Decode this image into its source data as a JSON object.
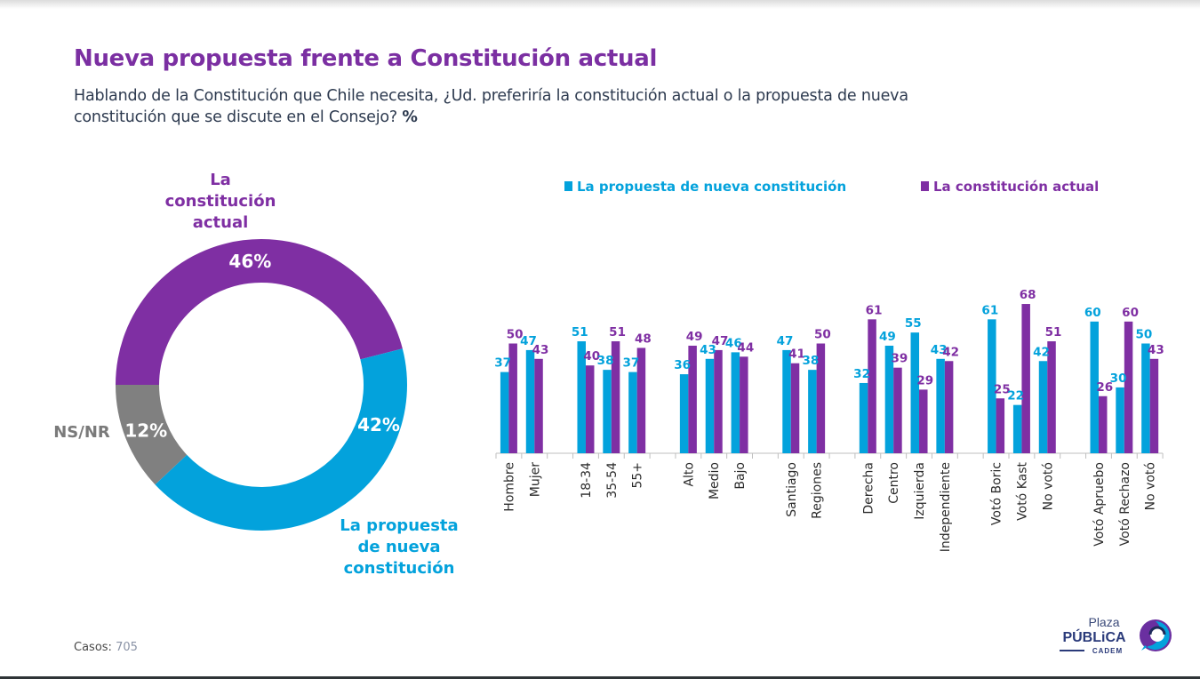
{
  "header": {
    "title": "Nueva propuesta frente a Constitución actual",
    "subtitle": "Hablando de la Constitución que Chile necesita, ¿Ud. preferiría la constitución actual o la propuesta de nueva constitución que se discute en el Consejo?",
    "subtitle_unit": "%"
  },
  "colors": {
    "purple": "#7f2fa3",
    "blue": "#03a2dc",
    "gray": "#808080",
    "title": "#7b2fa2"
  },
  "footer": {
    "cases_label": "Casos",
    "cases_value": "705"
  },
  "logo": {
    "line1": "Plaza",
    "line2": "PÚBLiCA",
    "line3": "CADEM"
  },
  "chart_data": [
    {
      "type": "pie",
      "donut": true,
      "title": "",
      "start": "left",
      "direction": "clockwise",
      "slices": [
        {
          "name": "La constitución actual",
          "label_lines": [
            "La",
            "constitución",
            "actual"
          ],
          "value": 46,
          "display": "46%",
          "color": "#7f2fa3"
        },
        {
          "name": "La propuesta de nueva constitución",
          "label_lines": [
            "La propuesta",
            "de nueva",
            "constitución"
          ],
          "value": 42,
          "display": "42%",
          "color": "#03a2dc"
        },
        {
          "name": "NS/NR",
          "label_lines": [
            "NS/NR"
          ],
          "value": 12,
          "display": "12%",
          "color": "#808080"
        }
      ]
    },
    {
      "type": "bar",
      "title": "",
      "xlabel": "",
      "ylabel": "",
      "ylim": [
        0,
        70
      ],
      "grid": false,
      "legend_position": "top",
      "groups": [
        [
          "Hombre",
          "Mujer"
        ],
        [
          "18-34",
          "35-54",
          "55+"
        ],
        [
          "Alto",
          "Medio",
          "Bajo"
        ],
        [
          "Santiago",
          "Regiones"
        ],
        [
          "Derecha",
          "Centro",
          "Izquierda",
          "Independiente"
        ],
        [
          "Votó Boric",
          "Votó Kast",
          "No votó"
        ],
        [
          "Votó Apruebo",
          "Votó Rechazo",
          "No votó"
        ]
      ],
      "categories": [
        "Hombre",
        "Mujer",
        "18-34",
        "35-54",
        "55+",
        "Alto",
        "Medio",
        "Bajo",
        "Santiago",
        "Regiones",
        "Derecha",
        "Centro",
        "Izquierda",
        "Independiente",
        "Votó Boric",
        "Votó Kast",
        "No votó",
        "Votó Apruebo",
        "Votó Rechazo",
        "No votó"
      ],
      "series": [
        {
          "name": "La propuesta de nueva constitución",
          "color": "#03a2dc",
          "values": [
            37,
            47,
            51,
            38,
            37,
            36,
            43,
            46,
            47,
            38,
            32,
            49,
            55,
            43,
            61,
            22,
            42,
            60,
            30,
            50
          ]
        },
        {
          "name": "La constitución actual",
          "color": "#7f2fa3",
          "values": [
            50,
            43,
            40,
            51,
            48,
            49,
            47,
            44,
            41,
            50,
            61,
            39,
            29,
            42,
            25,
            68,
            51,
            26,
            60,
            43
          ]
        }
      ]
    }
  ]
}
